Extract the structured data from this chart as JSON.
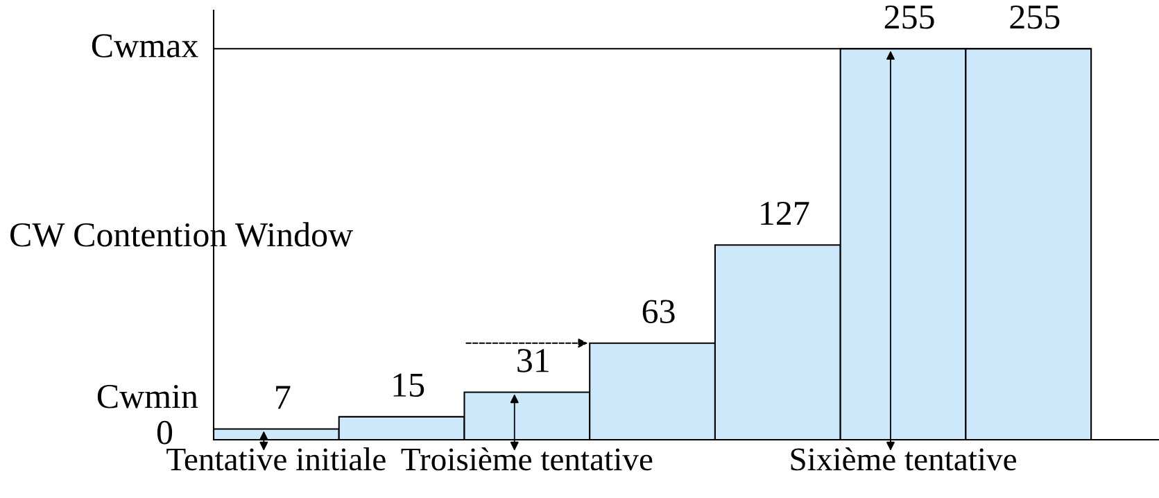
{
  "chart_data": {
    "type": "bar",
    "categories": [
      "Tentative initiale",
      null,
      "Troisième tentative",
      null,
      null,
      "Sixième tentative",
      null
    ],
    "values": [
      7,
      15,
      31,
      63,
      127,
      255,
      255
    ],
    "data_labels": true,
    "color": "#cce8fa",
    "ylim": [
      0,
      280
    ],
    "ref_lines": [
      {
        "axis": "y",
        "value": 255,
        "label": "Cwmax",
        "color": "#000000"
      }
    ],
    "annotations": [
      "0",
      "Cwmin",
      "CW Contention Window"
    ],
    "grid": false
  }
}
